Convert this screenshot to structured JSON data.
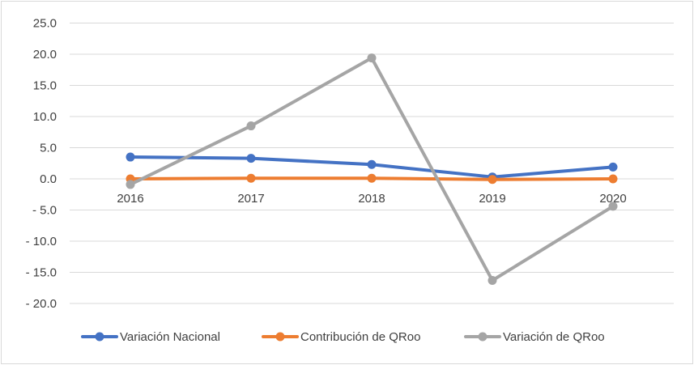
{
  "chart_data": {
    "type": "line",
    "categories": [
      "2016",
      "2017",
      "2018",
      "2019",
      "2020"
    ],
    "y_tick_labels": [
      {
        "value": 25,
        "label": "25.0"
      },
      {
        "value": 20,
        "label": "20.0"
      },
      {
        "value": 15,
        "label": "15.0"
      },
      {
        "value": 10,
        "label": "10.0"
      },
      {
        "value": 5,
        "label": "5.0"
      },
      {
        "value": 0,
        "label": "0.0"
      },
      {
        "value": -5,
        "label": "-   5.0"
      },
      {
        "value": -10,
        "label": "-   10.0"
      },
      {
        "value": -15,
        "label": "-   15.0"
      },
      {
        "value": -20,
        "label": "-   20.0"
      }
    ],
    "ylim": [
      -20,
      25
    ],
    "grid": true,
    "legend_position": "bottom",
    "series": [
      {
        "name": "Variación Nacional",
        "color": "#4472c4",
        "values": [
          3.5,
          3.3,
          2.3,
          0.3,
          1.9
        ]
      },
      {
        "name": "Contribución de QRoo",
        "color": "#ed7d31",
        "values": [
          0.0,
          0.1,
          0.1,
          -0.1,
          0.0
        ]
      },
      {
        "name": "Variación de QRoo",
        "color": "#a5a5a5",
        "values": [
          -0.9,
          8.5,
          19.4,
          -16.3,
          -4.4
        ]
      }
    ]
  }
}
